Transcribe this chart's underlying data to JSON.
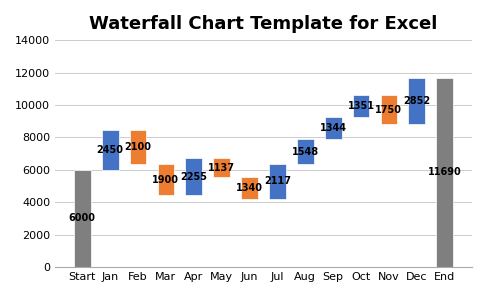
{
  "title": "Waterfall Chart Template for Excel",
  "categories": [
    "Start",
    "Jan",
    "Feb",
    "Mar",
    "Apr",
    "May",
    "Jun",
    "Jul",
    "Aug",
    "Sep",
    "Oct",
    "Nov",
    "Dec",
    "End"
  ],
  "bar_bottoms": [
    0,
    6000,
    6350,
    4450,
    4450,
    5568,
    4228,
    4228,
    6345,
    7893,
    9237,
    8838,
    8838,
    0
  ],
  "bar_heights": [
    6000,
    2450,
    2100,
    1900,
    2255,
    1137,
    1340,
    2117,
    1548,
    1344,
    1351,
    1750,
    2852,
    11690
  ],
  "bar_colors": [
    "#7F7F7F",
    "#4472C4",
    "#ED7D31",
    "#ED7D31",
    "#4472C4",
    "#ED7D31",
    "#ED7D31",
    "#4472C4",
    "#4472C4",
    "#4472C4",
    "#4472C4",
    "#ED7D31",
    "#4472C4",
    "#7F7F7F"
  ],
  "bar_labels": [
    "6000",
    "2450",
    "2100",
    "1900",
    "2255",
    "1137",
    "1340",
    "2117",
    "1548",
    "1344",
    "1351",
    "1750",
    "2852",
    "11690"
  ],
  "ylim": [
    0,
    14000
  ],
  "yticks": [
    0,
    2000,
    4000,
    6000,
    8000,
    10000,
    12000,
    14000
  ],
  "background_color": "#FFFFFF",
  "title_fontsize": 13,
  "bar_width": 0.6,
  "label_fontsize": 7
}
